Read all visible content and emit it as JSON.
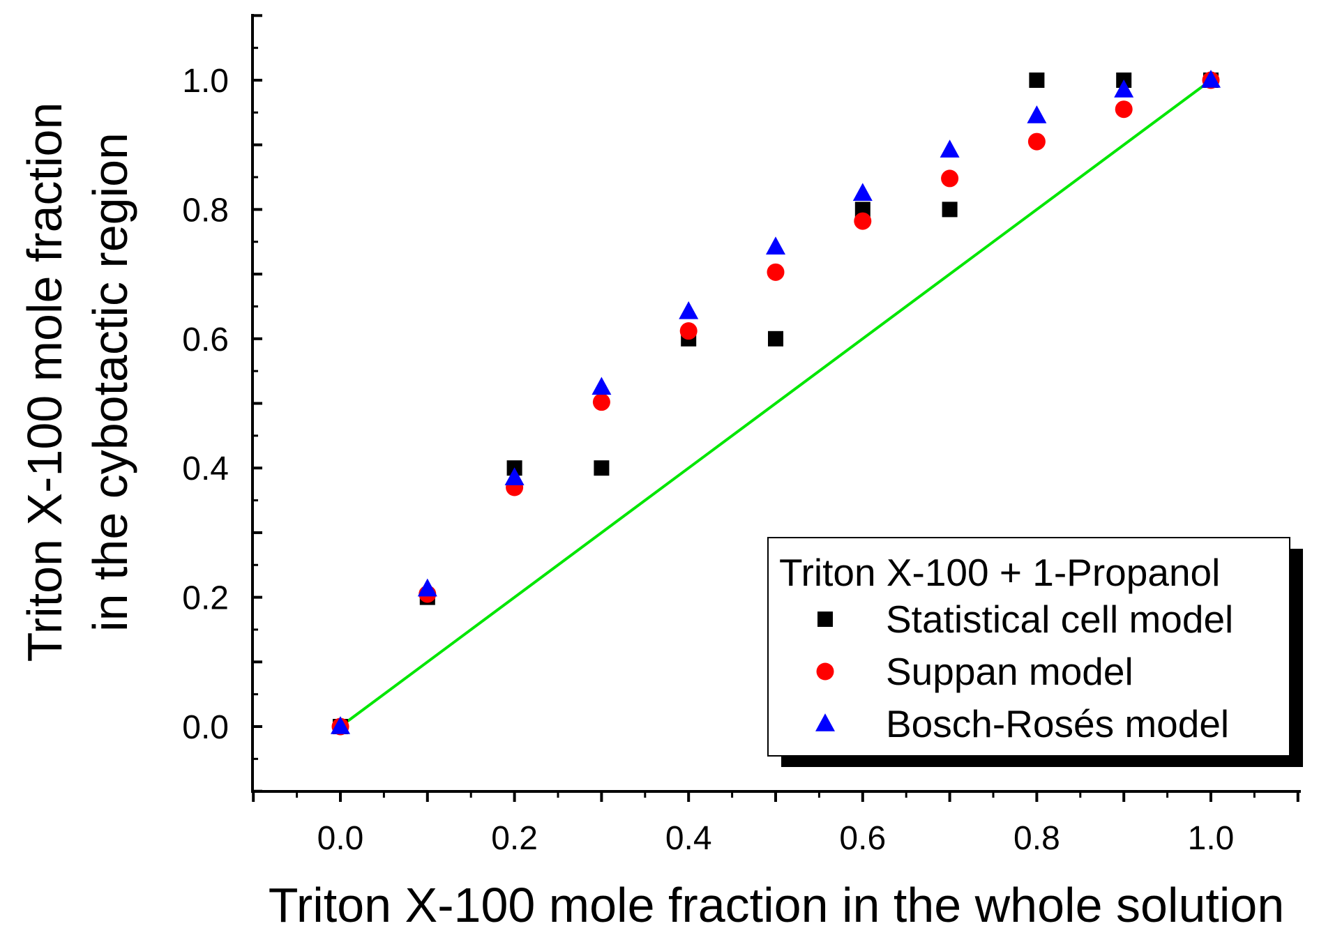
{
  "chart_data": {
    "type": "scatter",
    "title": "",
    "xlabel": "Triton X-100 mole fraction in the whole solution",
    "ylabel_lines": [
      "Triton X-100 mole fraction",
      "in the cybotactic region"
    ],
    "xlim": [
      -0.1,
      1.1
    ],
    "ylim": [
      -0.1,
      1.1
    ],
    "grid": false,
    "x_ticks": [
      0.0,
      0.2,
      0.4,
      0.6,
      0.8,
      1.0
    ],
    "x_tick_labels": [
      "0.0",
      "0.2",
      "0.4",
      "0.6",
      "0.8",
      "1.0"
    ],
    "y_ticks": [
      0.0,
      0.2,
      0.4,
      0.6,
      0.8,
      1.0
    ],
    "y_tick_labels": [
      "0.0",
      "0.2",
      "0.4",
      "0.6",
      "0.8",
      "1.0"
    ],
    "legend": {
      "title": "Triton X-100 + 1-Propanol",
      "placement": "bottom-right"
    },
    "series": [
      {
        "name": "Statistical cell model",
        "marker": "square",
        "color": "#000000",
        "x": [
          0.0,
          0.1,
          0.2,
          0.3,
          0.4,
          0.5,
          0.6,
          0.7,
          0.8,
          0.9,
          1.0
        ],
        "y": [
          0.0,
          0.2,
          0.4,
          0.4,
          0.6,
          0.6,
          0.8,
          0.8,
          1.0,
          1.0,
          1.0
        ]
      },
      {
        "name": "Suppan model",
        "marker": "circle",
        "color": "#ff0000",
        "x": [
          0.0,
          0.1,
          0.2,
          0.3,
          0.4,
          0.5,
          0.6,
          0.7,
          0.8,
          0.9,
          1.0
        ],
        "y": [
          0.0,
          0.205,
          0.37,
          0.502,
          0.612,
          0.703,
          0.782,
          0.848,
          0.905,
          0.955,
          1.0
        ]
      },
      {
        "name": "Bosch-Rosés model",
        "marker": "triangle",
        "color": "#0000ff",
        "x": [
          0.0,
          0.1,
          0.2,
          0.3,
          0.4,
          0.5,
          0.6,
          0.7,
          0.8,
          0.9,
          1.0
        ],
        "y": [
          0.0,
          0.213,
          0.385,
          0.525,
          0.642,
          0.742,
          0.825,
          0.892,
          0.945,
          0.985,
          1.0
        ]
      }
    ],
    "reference_line": {
      "name": "y = x",
      "color": "#00e600",
      "x": [
        0.0,
        1.0
      ],
      "y": [
        0.0,
        1.0
      ]
    }
  }
}
